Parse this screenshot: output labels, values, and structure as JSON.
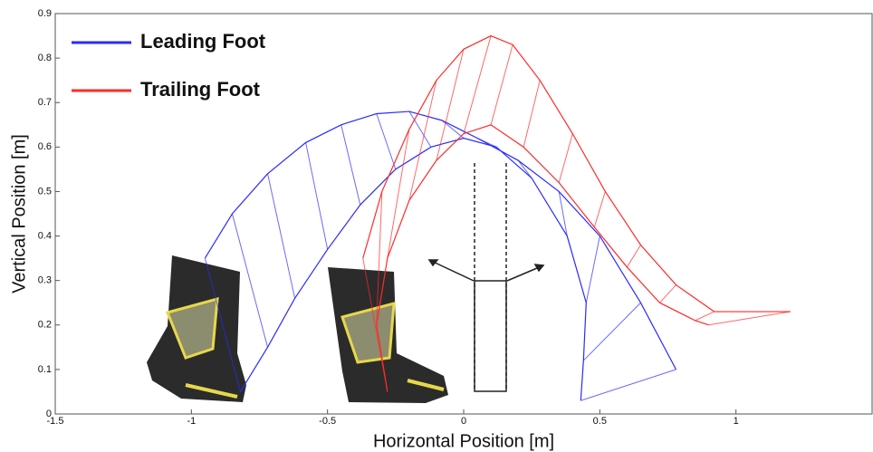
{
  "chart_data": {
    "type": "stick",
    "x_label": "Horizontal Position [m]",
    "y_label": "Vertical Position [m]",
    "xlim": [
      -1.5,
      1.5
    ],
    "ylim": [
      0,
      0.9
    ],
    "xticks": [
      -1.5,
      -1,
      -0.5,
      0,
      0.5,
      1
    ],
    "yticks": [
      0,
      0.1,
      0.2,
      0.3,
      0.4,
      0.5,
      0.6,
      0.7,
      0.8,
      0.9
    ],
    "legend": "upper left",
    "series": [
      {
        "name": "Leading Foot",
        "color": "#2a2aff",
        "x": [
          -0.95,
          -0.85,
          -0.72,
          -0.58,
          -0.45,
          -0.32,
          -0.2,
          -0.08,
          0.05,
          0.2,
          0.35,
          0.5,
          0.65,
          0.78
        ],
        "y": [
          0.35,
          0.45,
          0.54,
          0.61,
          0.65,
          0.675,
          0.68,
          0.66,
          0.62,
          0.57,
          0.5,
          0.4,
          0.25,
          0.1
        ],
        "x2": [
          -0.82,
          -0.72,
          -0.62,
          -0.5,
          -0.38,
          -0.25,
          -0.12,
          0.0,
          0.12,
          0.25,
          0.38,
          0.45,
          0.44,
          0.43
        ],
        "y2": [
          0.05,
          0.15,
          0.26,
          0.37,
          0.47,
          0.55,
          0.6,
          0.62,
          0.6,
          0.53,
          0.4,
          0.25,
          0.12,
          0.03
        ]
      },
      {
        "name": "Trailing Foot",
        "color": "#ff2a2a",
        "x": [
          -0.37,
          -0.3,
          -0.2,
          -0.1,
          0.0,
          0.1,
          0.18,
          0.28,
          0.4,
          0.52,
          0.65,
          0.78,
          0.92,
          1.2
        ],
        "y": [
          0.35,
          0.5,
          0.64,
          0.75,
          0.82,
          0.85,
          0.83,
          0.75,
          0.63,
          0.5,
          0.38,
          0.29,
          0.23,
          0.23
        ],
        "x2": [
          -0.28,
          -0.32,
          -0.28,
          -0.2,
          -0.1,
          0.0,
          0.1,
          0.22,
          0.35,
          0.48,
          0.6,
          0.72,
          0.85,
          0.9
        ],
        "y2": [
          0.05,
          0.2,
          0.35,
          0.48,
          0.57,
          0.63,
          0.65,
          0.6,
          0.52,
          0.42,
          0.33,
          0.25,
          0.21,
          0.2
        ]
      }
    ]
  }
}
